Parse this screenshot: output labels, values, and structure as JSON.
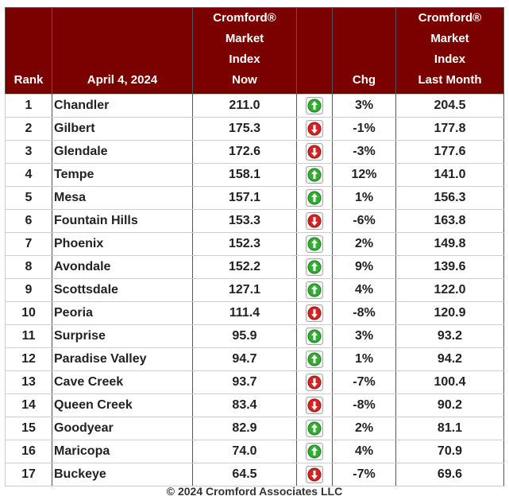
{
  "table": {
    "headers": [
      [
        "Rank"
      ],
      [
        "April 4, 2024"
      ],
      [
        "Cromford®",
        "Market",
        "Index",
        "Now"
      ],
      [],
      [
        "Chg"
      ],
      [
        "Cromford®",
        "Market",
        "Index",
        "Last Month"
      ]
    ],
    "rows": [
      {
        "rank": "1",
        "city": "Chandler",
        "now": "211.0",
        "trend": "up",
        "chg": "3%",
        "last": "204.5"
      },
      {
        "rank": "2",
        "city": "Gilbert",
        "now": "175.3",
        "trend": "down",
        "chg": "-1%",
        "last": "177.8"
      },
      {
        "rank": "3",
        "city": "Glendale",
        "now": "172.6",
        "trend": "down",
        "chg": "-3%",
        "last": "177.6"
      },
      {
        "rank": "4",
        "city": "Tempe",
        "now": "158.1",
        "trend": "up",
        "chg": "12%",
        "last": "141.0"
      },
      {
        "rank": "5",
        "city": "Mesa",
        "now": "157.1",
        "trend": "up",
        "chg": "1%",
        "last": "156.3"
      },
      {
        "rank": "6",
        "city": "Fountain Hills",
        "now": "153.3",
        "trend": "down",
        "chg": "-6%",
        "last": "163.8"
      },
      {
        "rank": "7",
        "city": "Phoenix",
        "now": "152.3",
        "trend": "up",
        "chg": "2%",
        "last": "149.8"
      },
      {
        "rank": "8",
        "city": "Avondale",
        "now": "152.2",
        "trend": "up",
        "chg": "9%",
        "last": "139.6"
      },
      {
        "rank": "9",
        "city": "Scottsdale",
        "now": "127.1",
        "trend": "up",
        "chg": "4%",
        "last": "122.0"
      },
      {
        "rank": "10",
        "city": "Peoria",
        "now": "111.4",
        "trend": "down",
        "chg": "-8%",
        "last": "120.9"
      },
      {
        "rank": "11",
        "city": "Surprise",
        "now": "95.9",
        "trend": "up",
        "chg": "3%",
        "last": "93.2"
      },
      {
        "rank": "12",
        "city": "Paradise Valley",
        "now": "94.7",
        "trend": "up",
        "chg": "1%",
        "last": "94.2"
      },
      {
        "rank": "13",
        "city": "Cave Creek",
        "now": "93.7",
        "trend": "down",
        "chg": "-7%",
        "last": "100.4"
      },
      {
        "rank": "14",
        "city": "Queen Creek",
        "now": "83.4",
        "trend": "down",
        "chg": "-8%",
        "last": "90.2"
      },
      {
        "rank": "15",
        "city": "Goodyear",
        "now": "82.9",
        "trend": "up",
        "chg": "2%",
        "last": "81.1"
      },
      {
        "rank": "16",
        "city": "Maricopa",
        "now": "74.0",
        "trend": "up",
        "chg": "4%",
        "last": "70.9"
      },
      {
        "rank": "17",
        "city": "Buckeye",
        "now": "64.5",
        "trend": "down",
        "chg": "-7%",
        "last": "69.6"
      }
    ],
    "footer": "© 2024 Cromford Associates LLC"
  }
}
